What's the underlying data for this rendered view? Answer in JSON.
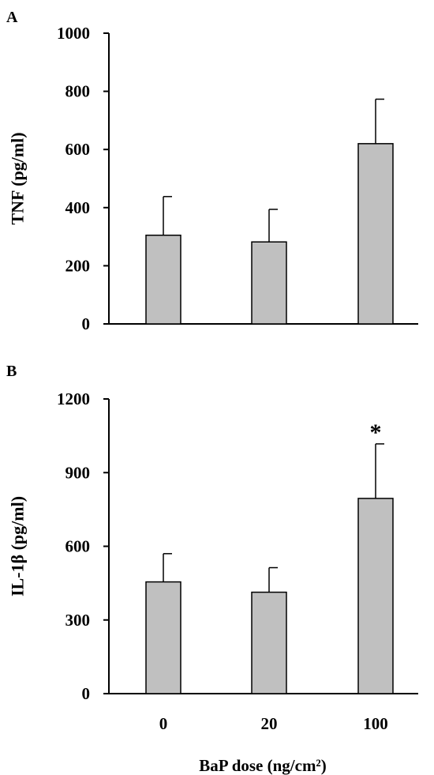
{
  "chart_data": [
    {
      "type": "bar",
      "panel_label": "A",
      "categories": [
        "0",
        "20",
        "100"
      ],
      "values": [
        305,
        282,
        620
      ],
      "errors": [
        133,
        112,
        153
      ],
      "annotations": [
        "",
        "",
        ""
      ],
      "ylabel": "TNF (pg/ml)",
      "xlabel": "",
      "ylim": [
        0,
        1000
      ],
      "yticks": [
        0,
        200,
        400,
        600,
        800,
        1000
      ],
      "bar_color": "#c0c0c0",
      "grid": false,
      "show_xticklabels": false
    },
    {
      "type": "bar",
      "panel_label": "B",
      "categories": [
        "0",
        "20",
        "100"
      ],
      "values": [
        455,
        413,
        795
      ],
      "errors": [
        115,
        100,
        222
      ],
      "annotations": [
        "",
        "",
        "*"
      ],
      "ylabel": "IL-1β (pg/ml)",
      "xlabel": "BaP dose (ng/cm²)",
      "ylim": [
        0,
        1200
      ],
      "yticks": [
        0,
        300,
        600,
        900,
        1200
      ],
      "bar_color": "#c0c0c0",
      "grid": false,
      "show_xticklabels": true
    }
  ]
}
